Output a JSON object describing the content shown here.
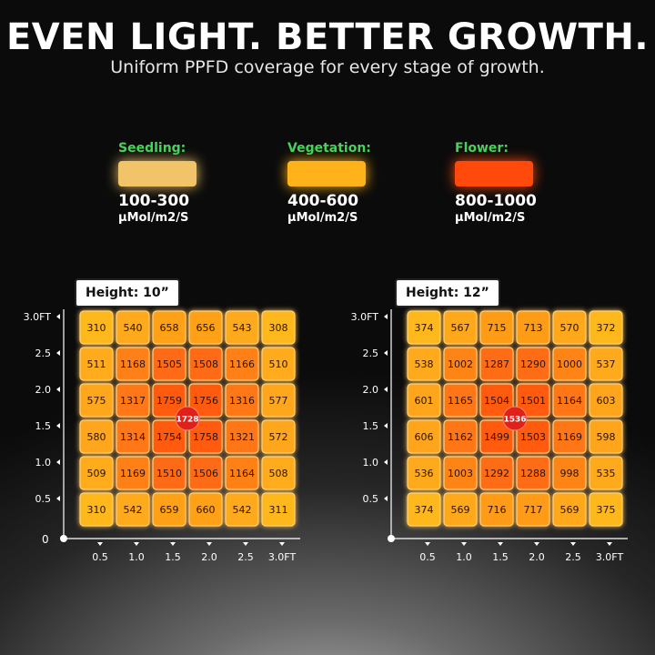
{
  "header": {
    "title": "EVEN LIGHT. BETTER GROWTH.",
    "subtitle": "Uniform PPFD coverage for every stage of growth."
  },
  "legend": [
    {
      "label": "Seedling:",
      "range": "100-300",
      "unit": "μMol/m2/S",
      "color": "#f2c46a"
    },
    {
      "label": "Vegetation:",
      "range": "400-600",
      "unit": "μMol/m2/S",
      "color": "#ffb21a"
    },
    {
      "label": "Flower:",
      "range": "800-1000",
      "unit": "μMol/m2/S",
      "color": "#ff4a0c"
    }
  ],
  "colors": {
    "cell_low": "#ffb81c",
    "cell_high": "#ff5a10",
    "center_dot": "#e0201a",
    "label_green": "#47d35b"
  },
  "chart_data": [
    {
      "type": "heatmap",
      "title": "Height: 10”",
      "x_ticks": [
        "0.5",
        "1.0",
        "1.5",
        "2.0",
        "2.5",
        "3.0FT"
      ],
      "y_ticks": [
        "0.5",
        "1.0",
        "1.5",
        "2.0",
        "2.5",
        "3.0FT"
      ],
      "origin_label": "0",
      "grid": [
        [
          310,
          540,
          658,
          656,
          543,
          308
        ],
        [
          511,
          1168,
          1505,
          1508,
          1166,
          510
        ],
        [
          575,
          1317,
          1759,
          1756,
          1316,
          577
        ],
        [
          580,
          1314,
          1754,
          1758,
          1321,
          572
        ],
        [
          509,
          1169,
          1510,
          1506,
          1164,
          508
        ],
        [
          310,
          542,
          659,
          660,
          542,
          311
        ]
      ],
      "center_value": 1728
    },
    {
      "type": "heatmap",
      "title": "Height: 12”",
      "x_ticks": [
        "0.5",
        "1.0",
        "1.5",
        "2.0",
        "2.5",
        "3.0FT"
      ],
      "y_ticks": [
        "0.5",
        "1.0",
        "1.5",
        "2.0",
        "2.5",
        "3.0FT"
      ],
      "origin_label": "",
      "grid": [
        [
          374,
          567,
          715,
          713,
          570,
          372
        ],
        [
          538,
          1002,
          1287,
          1290,
          1000,
          537
        ],
        [
          601,
          1165,
          1504,
          1501,
          1164,
          603
        ],
        [
          606,
          1162,
          1499,
          1503,
          1169,
          598
        ],
        [
          536,
          1003,
          1292,
          1288,
          998,
          535
        ],
        [
          374,
          569,
          716,
          717,
          569,
          375
        ]
      ],
      "center_value": 1536
    }
  ]
}
